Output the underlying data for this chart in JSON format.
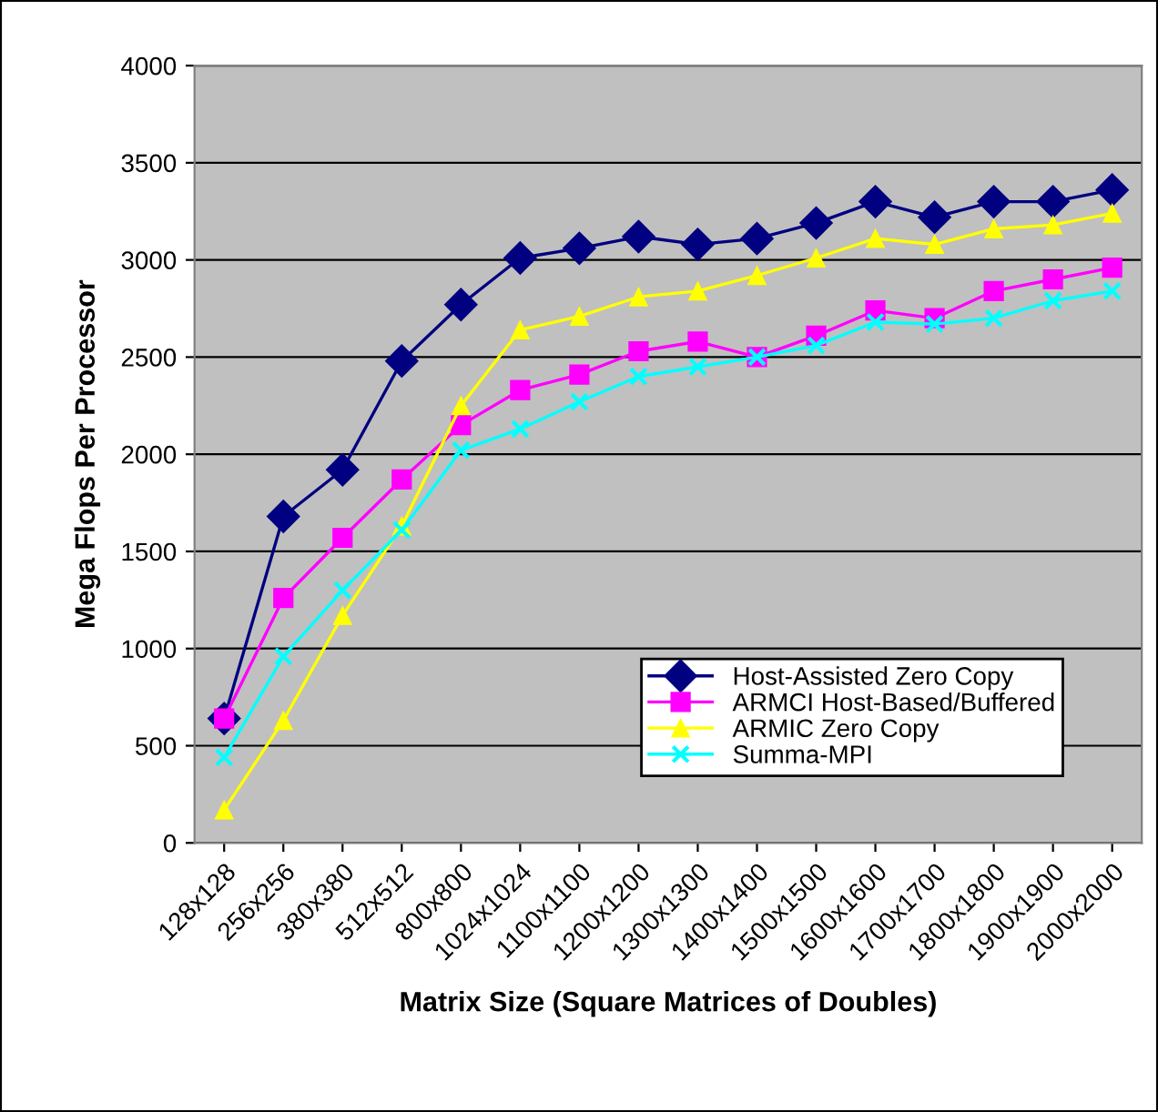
{
  "chart_data": {
    "type": "line",
    "xlabel": "Matrix Size (Square Matrices of Doubles)",
    "ylabel": "Mega Flops Per Processor",
    "categories": [
      "128x128",
      "256x256",
      "380x380",
      "512x512",
      "800x800",
      "1024x1024",
      "1100x1100",
      "1200x1200",
      "1300x1300",
      "1400x1400",
      "1500x1500",
      "1600x1600",
      "1700x1700",
      "1800x1800",
      "1900x1900",
      "2000x2000"
    ],
    "series": [
      {
        "name": "Host-Assisted Zero Copy",
        "color": "#000080",
        "marker": "diamond",
        "values": [
          640,
          1680,
          1920,
          2480,
          2770,
          3010,
          3060,
          3120,
          3080,
          3110,
          3190,
          3300,
          3220,
          3300,
          3300,
          3360
        ]
      },
      {
        "name": "ARMCI Host-Based/Buffered",
        "color": "#ff00ff",
        "marker": "square",
        "values": [
          640,
          1260,
          1570,
          1870,
          2150,
          2330,
          2410,
          2530,
          2580,
          2500,
          2610,
          2740,
          2700,
          2840,
          2900,
          2960
        ]
      },
      {
        "name": "ARMIC Zero Copy",
        "color": "#ffff00",
        "marker": "triangle",
        "values": [
          170,
          630,
          1170,
          1630,
          2250,
          2640,
          2710,
          2810,
          2840,
          2920,
          3010,
          3110,
          3080,
          3160,
          3180,
          3240
        ]
      },
      {
        "name": "Summa-MPI",
        "color": "#00ffff",
        "marker": "cross",
        "values": [
          440,
          960,
          1300,
          1610,
          2020,
          2130,
          2270,
          2400,
          2450,
          2500,
          2560,
          2680,
          2670,
          2700,
          2790,
          2840
        ]
      }
    ],
    "ylim": [
      0,
      4000
    ],
    "yticks": [
      0,
      500,
      1000,
      1500,
      2000,
      2500,
      3000,
      3500,
      4000
    ],
    "grid": "y",
    "legend": "bottom right"
  }
}
